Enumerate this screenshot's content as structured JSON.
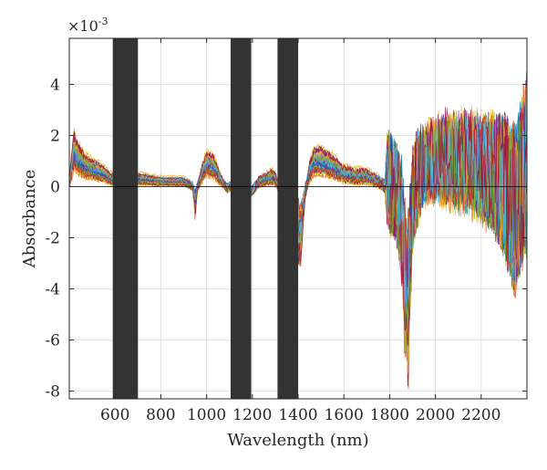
{
  "chart_data": {
    "type": "line",
    "title": "",
    "xlabel": "Wavelength (nm)",
    "ylabel": "Absorbance",
    "y_scale_exponent_label": "×10",
    "y_scale_exponent": "-3",
    "y_multiplier": 0.001,
    "xlim": [
      400,
      2400
    ],
    "ylim": [
      -8.3,
      5.8
    ],
    "xticks": [
      600,
      800,
      1000,
      1200,
      1400,
      1600,
      1800,
      2000,
      2200
    ],
    "xtick_labels": [
      "600",
      "800",
      "1000",
      "1200",
      "1400",
      "1600",
      "1800",
      "2000",
      "2200"
    ],
    "yticks": [
      -8,
      -6,
      -4,
      -2,
      0,
      2,
      4
    ],
    "ytick_labels": [
      "-8",
      "-6",
      "-4",
      "-2",
      "0",
      "2",
      "4"
    ],
    "grid": true,
    "legend": "none",
    "excluded_bands_nm": [
      [
        590,
        700
      ],
      [
        1105,
        1195
      ],
      [
        1310,
        1400
      ]
    ],
    "band_color": "#333333",
    "series_colors": [
      "#0072BD",
      "#D95319",
      "#EDB120",
      "#7E2F8E",
      "#77AC30",
      "#4DBEEE",
      "#A2142F"
    ],
    "series_count": "many overlaid spectra",
    "mean_profile": {
      "x": [
        400,
        420,
        440,
        470,
        500,
        550,
        580,
        720,
        800,
        900,
        940,
        950,
        960,
        980,
        1000,
        1030,
        1060,
        1090,
        1100,
        1200,
        1230,
        1260,
        1290,
        1300,
        1410,
        1430,
        1450,
        1470,
        1500,
        1550,
        1600,
        1650,
        1700,
        1750,
        1780,
        1790,
        1810,
        1830,
        1850,
        1870,
        1880,
        1890,
        1900,
        1920,
        1950,
        2000,
        2050,
        2100,
        2150,
        2200,
        2250,
        2300,
        2350,
        2400
      ],
      "y": [
        0.2,
        1.4,
        1.1,
        0.8,
        0.7,
        0.5,
        0.3,
        0.3,
        0.2,
        0.2,
        0.0,
        -0.8,
        0.0,
        0.5,
        0.9,
        0.8,
        0.3,
        -0.1,
        0.0,
        -0.2,
        0.2,
        0.3,
        0.4,
        0.3,
        -2.0,
        -0.3,
        0.6,
        1.0,
        1.0,
        0.8,
        0.5,
        0.4,
        0.4,
        0.2,
        0.0,
        0.3,
        0.0,
        -0.3,
        -1.2,
        -4.0,
        -5.0,
        -2.5,
        -0.5,
        0.3,
        0.8,
        1.0,
        1.1,
        1.0,
        0.9,
        0.7,
        0.5,
        0.0,
        -1.0,
        1.0
      ],
      "spread": [
        0.3,
        0.5,
        0.4,
        0.3,
        0.25,
        0.2,
        0.2,
        0.15,
        0.1,
        0.1,
        0.2,
        0.6,
        0.3,
        0.3,
        0.3,
        0.25,
        0.2,
        0.2,
        0.2,
        0.3,
        0.25,
        0.2,
        0.3,
        0.3,
        1.2,
        0.5,
        0.4,
        0.3,
        0.3,
        0.3,
        0.3,
        0.3,
        0.3,
        0.3,
        0.4,
        2.0,
        2.0,
        2.0,
        2.0,
        2.0,
        1.5,
        2.0,
        2.0,
        2.0,
        1.4,
        1.4,
        1.6,
        1.7,
        1.8,
        2.0,
        2.3,
        2.8,
        3.2,
        3.5
      ]
    }
  }
}
